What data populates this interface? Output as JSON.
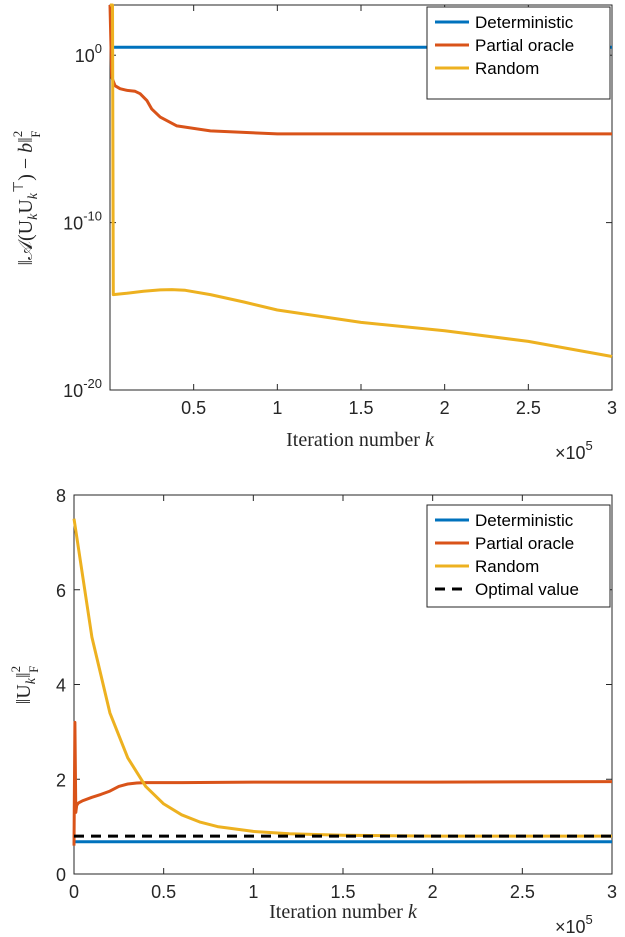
{
  "chart_data": [
    {
      "type": "line",
      "yscale": "log",
      "xlim": [
        0,
        300000
      ],
      "ylim": [
        1e-20,
        1000.0
      ],
      "xticks": [
        50000,
        100000,
        150000,
        200000,
        250000,
        300000
      ],
      "xtick_labels": [
        "0.5",
        "1",
        "1.5",
        "2",
        "2.5",
        "3"
      ],
      "yticks": [
        {
          "base": "10",
          "exp": "-20",
          "value": 1e-20
        },
        {
          "base": "10",
          "exp": "-10",
          "value": 1e-10
        },
        {
          "base": "10",
          "exp": "0",
          "value": 1
        }
      ],
      "x_multiplier": {
        "base": "×10",
        "exp": "5"
      },
      "xlabel": "Iteration number k",
      "ylabel": "||A(U_k U_k^T) - b||_F^2",
      "grid": false,
      "legend_position": "top-right",
      "series": [
        {
          "name": "Deterministic",
          "color": "#0072BD",
          "x": [
            0,
            300000
          ],
          "y": [
            3,
            3
          ]
        },
        {
          "name": "Partial oracle",
          "color": "#D95319",
          "x": [
            0,
            1000,
            3000,
            6000,
            10000,
            15000,
            18000,
            22000,
            25000,
            30000,
            40000,
            60000,
            100000,
            150000,
            200000,
            250000,
            300000
          ],
          "y": [
            1000,
            0.05,
            0.015,
            0.01,
            0.008,
            0.007,
            0.005,
            0.002,
            0.0006,
            0.0002,
            6e-05,
            3e-05,
            2e-05,
            2e-05,
            2e-05,
            2e-05,
            2e-05
          ]
        },
        {
          "name": "Random",
          "color": "#EDB120",
          "x": [
            0,
            1500,
            2000,
            10000,
            20000,
            30000,
            37000,
            45000,
            60000,
            80000,
            100000,
            150000,
            200000,
            250000,
            300000
          ],
          "y": [
            1000,
            1000,
            5e-15,
            6e-15,
            8e-15,
            9.5e-15,
            1e-14,
            9e-15,
            5e-15,
            1.8e-15,
            6e-16,
            1.1e-16,
            3.5e-17,
            8e-18,
            1e-18
          ]
        }
      ]
    },
    {
      "type": "line",
      "xlim": [
        0,
        300000
      ],
      "ylim": [
        0,
        8
      ],
      "xticks": [
        0,
        50000,
        100000,
        150000,
        200000,
        250000,
        300000
      ],
      "xtick_labels": [
        "0",
        "0.5",
        "1",
        "1.5",
        "2",
        "2.5",
        "3"
      ],
      "yticks": [
        0,
        2,
        4,
        6,
        8
      ],
      "ytick_labels": [
        "0",
        "2",
        "4",
        "6",
        "8"
      ],
      "x_multiplier": {
        "base": "×10",
        "exp": "5"
      },
      "xlabel": "Iteration number k",
      "ylabel": "||U_k||_F^2",
      "grid": false,
      "legend_position": "top-right",
      "series": [
        {
          "name": "Deterministic",
          "color": "#0072BD",
          "x": [
            0,
            300000
          ],
          "y": [
            0.68,
            0.68
          ]
        },
        {
          "name": "Partial oracle",
          "color": "#D95319",
          "x": [
            0,
            500,
            1000,
            1500,
            2500,
            5000,
            10000,
            15000,
            20000,
            25000,
            30000,
            35000,
            40000,
            60000,
            100000,
            200000,
            300000
          ],
          "y": [
            0.6,
            3.2,
            1.3,
            1.45,
            1.5,
            1.55,
            1.62,
            1.68,
            1.75,
            1.85,
            1.9,
            1.92,
            1.93,
            1.93,
            1.94,
            1.94,
            1.95
          ]
        },
        {
          "name": "Random",
          "color": "#EDB120",
          "x": [
            0,
            10000,
            20000,
            30000,
            40000,
            50000,
            60000,
            70000,
            80000,
            100000,
            120000,
            150000,
            200000,
            250000,
            300000
          ],
          "y": [
            7.5,
            5.0,
            3.4,
            2.45,
            1.85,
            1.48,
            1.25,
            1.1,
            1.0,
            0.9,
            0.85,
            0.82,
            0.8,
            0.8,
            0.8
          ]
        },
        {
          "name": "Optimal value",
          "color": "#000000",
          "dash": true,
          "x": [
            0,
            300000
          ],
          "y": [
            0.8,
            0.8
          ]
        }
      ]
    }
  ]
}
